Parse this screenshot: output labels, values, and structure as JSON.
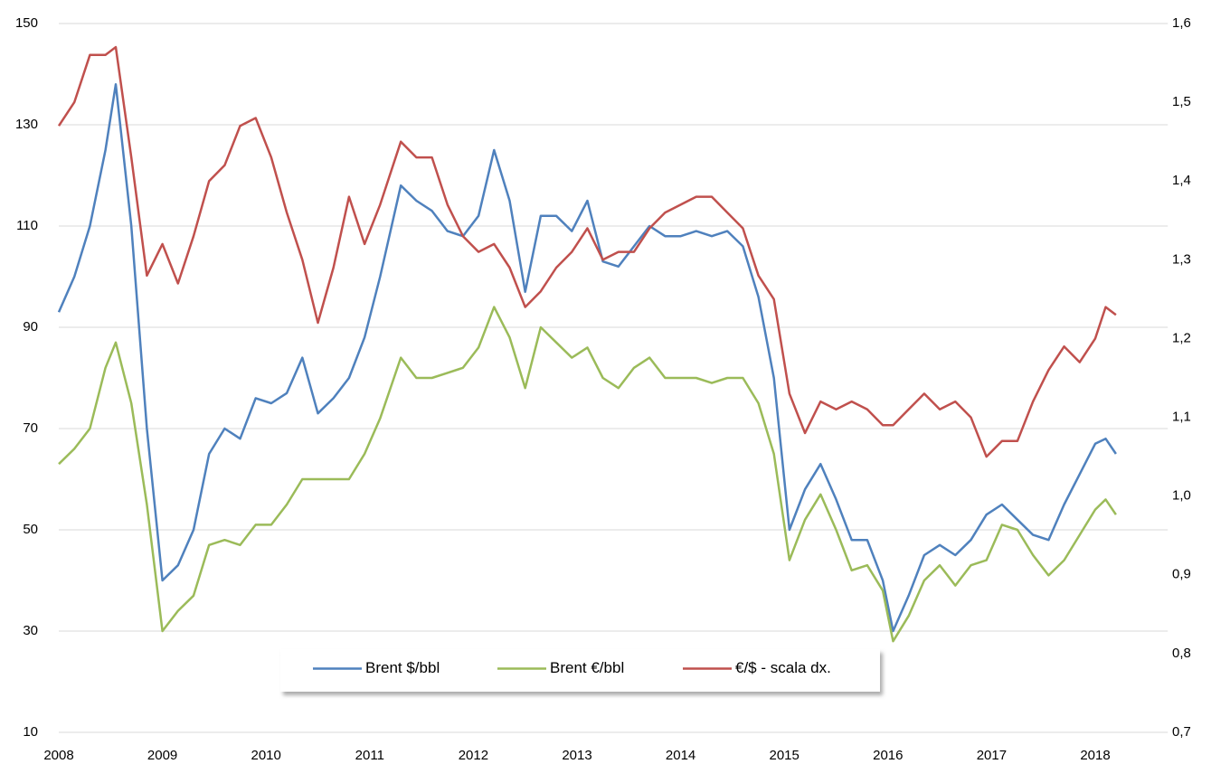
{
  "chart_data": {
    "type": "line",
    "x": [
      2008.0,
      2008.15,
      2008.3,
      2008.45,
      2008.55,
      2008.7,
      2008.85,
      2009.0,
      2009.15,
      2009.3,
      2009.45,
      2009.6,
      2009.75,
      2009.9,
      2010.05,
      2010.2,
      2010.35,
      2010.5,
      2010.65,
      2010.8,
      2010.95,
      2011.1,
      2011.3,
      2011.45,
      2011.6,
      2011.75,
      2011.9,
      2012.05,
      2012.2,
      2012.35,
      2012.5,
      2012.65,
      2012.8,
      2012.95,
      2013.1,
      2013.25,
      2013.4,
      2013.55,
      2013.7,
      2013.85,
      2014.0,
      2014.15,
      2014.3,
      2014.45,
      2014.6,
      2014.75,
      2014.9,
      2015.05,
      2015.2,
      2015.35,
      2015.5,
      2015.65,
      2015.8,
      2015.95,
      2016.05,
      2016.2,
      2016.35,
      2016.5,
      2016.65,
      2016.8,
      2016.95,
      2017.1,
      2017.25,
      2017.4,
      2017.55,
      2017.7,
      2017.85,
      2018.0,
      2018.1,
      2018.2
    ],
    "series": [
      {
        "name": "Brent $/bbl",
        "color": "#4f81bd",
        "values": [
          93,
          100,
          110,
          125,
          138,
          110,
          70,
          40,
          43,
          50,
          65,
          70,
          68,
          76,
          75,
          77,
          84,
          73,
          76,
          80,
          88,
          100,
          118,
          115,
          113,
          109,
          108,
          112,
          125,
          115,
          97,
          112,
          112,
          109,
          115,
          103,
          102,
          106,
          110,
          108,
          108,
          109,
          108,
          109,
          106,
          96,
          80,
          50,
          58,
          63,
          56,
          48,
          48,
          40,
          30,
          37,
          45,
          47,
          45,
          48,
          53,
          55,
          52,
          49,
          48,
          55,
          61,
          67,
          68,
          65
        ]
      },
      {
        "name": "Brent €/bbl",
        "color": "#9bbb59",
        "values": [
          63,
          66,
          70,
          82,
          87,
          75,
          55,
          30,
          34,
          37,
          47,
          48,
          47,
          51,
          51,
          55,
          60,
          60,
          60,
          60,
          65,
          72,
          84,
          80,
          80,
          81,
          82,
          86,
          94,
          88,
          78,
          90,
          87,
          84,
          86,
          80,
          78,
          82,
          84,
          80,
          80,
          80,
          79,
          80,
          80,
          75,
          65,
          44,
          52,
          57,
          50,
          42,
          43,
          38,
          28,
          33,
          40,
          43,
          39,
          43,
          44,
          51,
          50,
          45,
          41,
          44,
          49,
          54,
          56,
          53
        ]
      },
      {
        "name": "€/$ - scala dx.",
        "color": "#c0504d",
        "axis": "y2",
        "values": [
          1.47,
          1.5,
          1.56,
          1.56,
          1.57,
          1.43,
          1.28,
          1.32,
          1.27,
          1.33,
          1.4,
          1.42,
          1.47,
          1.48,
          1.43,
          1.36,
          1.3,
          1.22,
          1.29,
          1.38,
          1.32,
          1.37,
          1.45,
          1.43,
          1.43,
          1.37,
          1.33,
          1.31,
          1.32,
          1.29,
          1.24,
          1.26,
          1.29,
          1.31,
          1.34,
          1.3,
          1.31,
          1.31,
          1.34,
          1.36,
          1.37,
          1.38,
          1.38,
          1.36,
          1.34,
          1.28,
          1.25,
          1.13,
          1.08,
          1.12,
          1.11,
          1.12,
          1.11,
          1.09,
          1.09,
          1.11,
          1.13,
          1.11,
          1.12,
          1.1,
          1.05,
          1.07,
          1.07,
          1.12,
          1.16,
          1.19,
          1.17,
          1.2,
          1.24,
          1.23
        ]
      }
    ],
    "xlim": [
      2008,
      2018.7
    ],
    "xticks": [
      2008,
      2009,
      2010,
      2011,
      2012,
      2013,
      2014,
      2015,
      2016,
      2017,
      2018
    ],
    "ylim": [
      10,
      150
    ],
    "yticks": [
      10,
      30,
      50,
      70,
      90,
      110,
      130,
      150
    ],
    "y2lim": [
      0.7,
      1.6
    ],
    "y2ticks": [
      {
        "value": 0.7,
        "label": "0,7"
      },
      {
        "value": 0.8,
        "label": "0,8"
      },
      {
        "value": 0.9,
        "label": "0,9"
      },
      {
        "value": 1.0,
        "label": "1,0"
      },
      {
        "value": 1.1,
        "label": "1,1"
      },
      {
        "value": 1.2,
        "label": "1,2"
      },
      {
        "value": 1.3,
        "label": "1,3"
      },
      {
        "value": 1.4,
        "label": "1,4"
      },
      {
        "value": 1.5,
        "label": "1,5"
      },
      {
        "value": 1.6,
        "label": "1,6"
      }
    ],
    "grid": true,
    "legend": "lower center"
  }
}
